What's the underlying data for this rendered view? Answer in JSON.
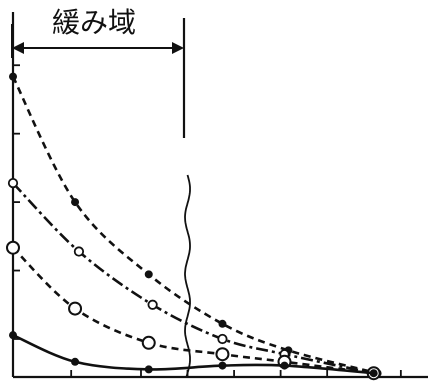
{
  "chart_data": {
    "type": "line",
    "title": "",
    "xlabel": "",
    "ylabel": "",
    "xlim": [
      0,
      10.7
    ],
    "ylim": [
      0,
      9.6
    ],
    "x_ticks": [
      0,
      1.5,
      3.3,
      4.5,
      5.7,
      6.9,
      8.1,
      9.3,
      10.0
    ],
    "y_ticks": [
      0,
      1.0,
      2.8,
      4.6,
      6.4,
      8.2
    ],
    "grid": false,
    "legend": "none",
    "annotation": {
      "text": "緩み域",
      "x_start": 0,
      "x_end": 4.5
    },
    "boundary_x": 4.5,
    "series": [
      {
        "name": "",
        "marker": "filled-dot",
        "line_style": "dashed",
        "color": "#111111",
        "x": [
          0,
          1.6,
          3.5,
          5.4,
          7.1,
          9.4
        ],
        "y": [
          7.9,
          4.6,
          2.7,
          1.4,
          0.7,
          0.1
        ]
      },
      {
        "name": "",
        "marker": "open-circle-small",
        "line_style": "dash-dot",
        "color": "#111111",
        "x": [
          0,
          1.7,
          3.6,
          5.4,
          7.0,
          9.3
        ],
        "y": [
          5.1,
          3.3,
          1.9,
          1.0,
          0.6,
          0.1
        ]
      },
      {
        "name": "",
        "marker": "open-circle-large",
        "line_style": "dashed",
        "color": "#111111",
        "x": [
          0,
          1.6,
          3.5,
          5.4,
          7.0,
          9.3
        ],
        "y": [
          3.4,
          1.8,
          0.9,
          0.6,
          0.4,
          0.1
        ]
      },
      {
        "name": "",
        "marker": "filled-dot",
        "line_style": "solid",
        "color": "#111111",
        "x": [
          0,
          1.6,
          3.5,
          5.4,
          7.0,
          9.3
        ],
        "y": [
          1.1,
          0.4,
          0.2,
          0.3,
          0.3,
          0.1
        ]
      }
    ]
  }
}
